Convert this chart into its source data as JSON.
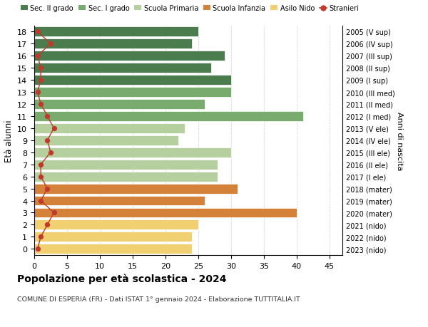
{
  "ages": [
    18,
    17,
    16,
    15,
    14,
    13,
    12,
    11,
    10,
    9,
    8,
    7,
    6,
    5,
    4,
    3,
    2,
    1,
    0
  ],
  "bar_values": [
    25,
    24,
    29,
    27,
    30,
    30,
    26,
    41,
    23,
    22,
    30,
    28,
    28,
    31,
    26,
    40,
    25,
    24,
    24
  ],
  "bar_colors": [
    "#4a7c4e",
    "#4a7c4e",
    "#4a7c4e",
    "#4a7c4e",
    "#4a7c4e",
    "#7aab6e",
    "#7aab6e",
    "#7aab6e",
    "#b5cf9e",
    "#b5cf9e",
    "#b5cf9e",
    "#b5cf9e",
    "#b5cf9e",
    "#d4813a",
    "#d4813a",
    "#d4813a",
    "#f0d070",
    "#f0d070",
    "#f0d070"
  ],
  "stranieri_values": [
    0.5,
    2.5,
    0.5,
    1,
    1,
    0.5,
    1,
    2,
    3,
    2,
    2.5,
    1,
    1,
    2,
    1,
    3,
    2,
    1,
    0.5
  ],
  "right_labels": [
    "2005 (V sup)",
    "2006 (IV sup)",
    "2007 (III sup)",
    "2008 (II sup)",
    "2009 (I sup)",
    "2010 (III med)",
    "2011 (II med)",
    "2012 (I med)",
    "2013 (V ele)",
    "2014 (IV ele)",
    "2015 (III ele)",
    "2016 (II ele)",
    "2017 (I ele)",
    "2018 (mater)",
    "2019 (mater)",
    "2020 (mater)",
    "2021 (nido)",
    "2022 (nido)",
    "2023 (nido)"
  ],
  "legend_labels": [
    "Sec. II grado",
    "Sec. I grado",
    "Scuola Primaria",
    "Scuola Infanzia",
    "Asilo Nido",
    "Stranieri"
  ],
  "legend_colors": [
    "#4a7c4e",
    "#7aab6e",
    "#b5cf9e",
    "#d4813a",
    "#f0d070",
    "#c0392b"
  ],
  "ylabel": "Età alunni",
  "right_ylabel": "Anni di nascita",
  "title": "Popolazione per età scolastica - 2024",
  "subtitle": "COMUNE DI ESPERIA (FR) - Dati ISTAT 1° gennaio 2024 - Elaborazione TUTTITALIA.IT",
  "xlim": [
    0,
    47
  ],
  "xticks": [
    0,
    5,
    10,
    15,
    20,
    25,
    30,
    35,
    40,
    45
  ],
  "background_color": "#ffffff",
  "grid_color": "#cccccc"
}
